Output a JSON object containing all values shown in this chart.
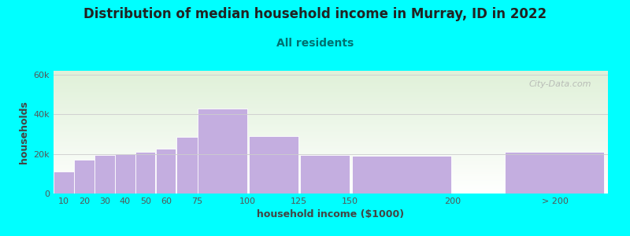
{
  "title": "Distribution of median household income in Murray, ID in 2022",
  "subtitle": "All residents",
  "xlabel": "household income ($1000)",
  "ylabel": "households",
  "background_color": "#00FFFF",
  "plot_bg_top": "#dff0d8",
  "plot_bg_bottom": "#ffffff",
  "bar_color": "#c4aee0",
  "bar_edge_color": "#ffffff",
  "categories": [
    "10",
    "20",
    "30",
    "40",
    "50",
    "60",
    "75",
    "100",
    "125",
    "150",
    "200",
    "> 200"
  ],
  "values": [
    11000,
    17000,
    19500,
    20000,
    21000,
    22500,
    28500,
    43000,
    29000,
    19500,
    19000,
    21000
  ],
  "bar_widths": [
    10,
    10,
    10,
    10,
    10,
    10,
    15,
    25,
    25,
    25,
    50,
    50
  ],
  "bar_lefts": [
    5,
    15,
    25,
    35,
    45,
    55,
    65,
    75,
    100,
    125,
    150,
    225
  ],
  "xlim_left": 5,
  "xlim_right": 276,
  "ylim": [
    0,
    62000
  ],
  "yticks": [
    0,
    20000,
    40000,
    60000
  ],
  "ytick_labels": [
    "0",
    "20k",
    "40k",
    "60k"
  ],
  "grid_color": "#cccccc",
  "title_fontsize": 12,
  "subtitle_fontsize": 10,
  "axis_label_fontsize": 9,
  "tick_fontsize": 8,
  "watermark": "City-Data.com",
  "subtitle_color": "#007070",
  "title_color": "#222222",
  "axis_label_color": "#444444",
  "tick_color": "#555555",
  "xtick_positions": [
    10,
    20,
    30,
    40,
    50,
    60,
    75,
    100,
    125,
    150,
    200,
    250
  ],
  "xtick_labels": [
    "10",
    "20",
    "30",
    "40",
    "50",
    "60",
    "75",
    "100",
    "125",
    "150",
    "200",
    "> 200"
  ]
}
